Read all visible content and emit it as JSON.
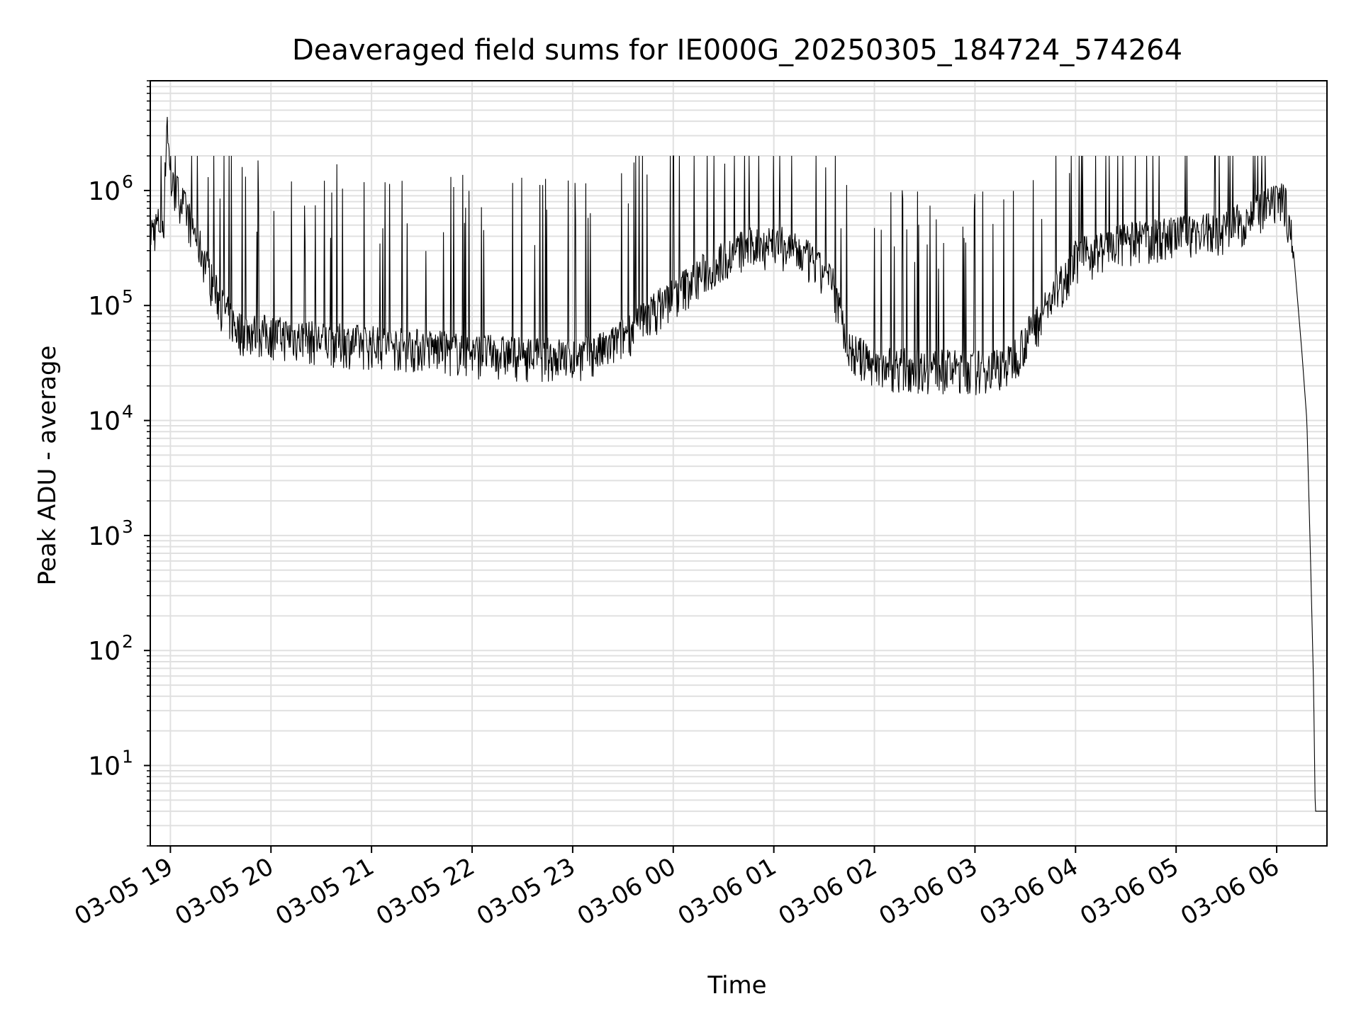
{
  "chart_data": {
    "type": "line",
    "title": "Deaveraged field sums for IE000G_20250305_184724_574264",
    "xlabel": "Time",
    "ylabel": "Peak ADU - average",
    "yscale": "log",
    "ylim": [
      2,
      9000000
    ],
    "xlim": [
      "2025-03-05 18:48",
      "2025-03-06 06:30"
    ],
    "grid": true,
    "line_color": "#000000",
    "grid_color": "#e0e0e0",
    "x_ticks": [
      {
        "value": "2025-03-05 19:00",
        "label": "03-05 19"
      },
      {
        "value": "2025-03-05 20:00",
        "label": "03-05 20"
      },
      {
        "value": "2025-03-05 21:00",
        "label": "03-05 21"
      },
      {
        "value": "2025-03-05 22:00",
        "label": "03-05 22"
      },
      {
        "value": "2025-03-05 23:00",
        "label": "03-05 23"
      },
      {
        "value": "2025-03-06 00:00",
        "label": "03-06 00"
      },
      {
        "value": "2025-03-06 01:00",
        "label": "03-06 01"
      },
      {
        "value": "2025-03-06 02:00",
        "label": "03-06 02"
      },
      {
        "value": "2025-03-06 03:00",
        "label": "03-06 03"
      },
      {
        "value": "2025-03-06 04:00",
        "label": "03-06 04"
      },
      {
        "value": "2025-03-06 05:00",
        "label": "03-06 05"
      },
      {
        "value": "2025-03-06 06:00",
        "label": "03-06 06"
      }
    ],
    "y_ticks": [
      {
        "value": 10,
        "base": "10",
        "exp": "1"
      },
      {
        "value": 100,
        "base": "10",
        "exp": "2"
      },
      {
        "value": 1000,
        "base": "10",
        "exp": "3"
      },
      {
        "value": 10000,
        "base": "10",
        "exp": "4"
      },
      {
        "value": 100000,
        "base": "10",
        "exp": "5"
      },
      {
        "value": 1000000,
        "base": "10",
        "exp": "6"
      }
    ],
    "series": [
      {
        "values_note_free": true,
        "points": [
          [
            "2025-03-05 18:48",
            420000
          ],
          [
            "2025-03-05 18:52",
            480000
          ],
          [
            "2025-03-05 18:56",
            520000
          ],
          [
            "2025-03-05 18:58",
            4500000
          ],
          [
            "2025-03-05 19:00",
            1100000
          ],
          [
            "2025-03-05 19:05",
            900000
          ],
          [
            "2025-03-05 19:10",
            600000
          ],
          [
            "2025-03-05 19:15",
            400000
          ],
          [
            "2025-03-05 19:20",
            250000
          ],
          [
            "2025-03-05 19:25",
            150000
          ],
          [
            "2025-03-05 19:30",
            100000
          ],
          [
            "2025-03-05 19:40",
            60000
          ],
          [
            "2025-03-05 20:00",
            55000
          ],
          [
            "2025-03-05 20:30",
            48000
          ],
          [
            "2025-03-05 21:00",
            45000
          ],
          [
            "2025-03-05 21:30",
            42000
          ],
          [
            "2025-03-05 22:00",
            38000
          ],
          [
            "2025-03-05 22:30",
            36000
          ],
          [
            "2025-03-05 23:00",
            35000
          ],
          [
            "2025-03-05 23:20",
            40000
          ],
          [
            "2025-03-05 23:40",
            70000
          ],
          [
            "2025-03-06 00:00",
            120000
          ],
          [
            "2025-03-06 00:20",
            200000
          ],
          [
            "2025-03-06 00:40",
            300000
          ],
          [
            "2025-03-06 01:00",
            350000
          ],
          [
            "2025-03-06 01:20",
            250000
          ],
          [
            "2025-03-06 01:35",
            150000
          ],
          [
            "2025-03-06 01:45",
            40000
          ],
          [
            "2025-03-06 02:00",
            30000
          ],
          [
            "2025-03-06 02:30",
            28000
          ],
          [
            "2025-03-06 03:00",
            27000
          ],
          [
            "2025-03-06 03:20",
            30000
          ],
          [
            "2025-03-06 03:40",
            80000
          ],
          [
            "2025-03-06 04:00",
            250000
          ],
          [
            "2025-03-06 04:30",
            350000
          ],
          [
            "2025-03-06 05:00",
            400000
          ],
          [
            "2025-03-06 05:30",
            450000
          ],
          [
            "2025-03-06 05:55",
            700000
          ],
          [
            "2025-03-06 06:05",
            800000
          ],
          [
            "2025-03-06 06:10",
            300000
          ],
          [
            "2025-03-06 06:15",
            40000
          ],
          [
            "2025-03-06 06:18",
            10000
          ],
          [
            "2025-03-06 06:20",
            800
          ],
          [
            "2025-03-06 06:22",
            50
          ],
          [
            "2025-03-06 06:23",
            4
          ],
          [
            "2025-03-06 06:30",
            4
          ]
        ]
      }
    ]
  }
}
